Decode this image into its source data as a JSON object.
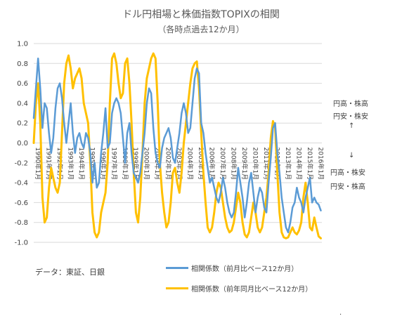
{
  "chart_data": {
    "type": "line",
    "title": "ドル円相場と株価指数TOPIXの相関",
    "subtitle": "（各時点過去12か月）",
    "ylim": [
      -1.0,
      1.0
    ],
    "yticks": [
      "1.0",
      "0.8",
      "0.6",
      "0.4",
      "0.2",
      "0.0",
      "-0.2",
      "-0.4",
      "-0.6",
      "-0.8",
      "-1.0"
    ],
    "x_tick_labels": [
      "1990年1月",
      "1991年1月",
      "1992年1月",
      "1993年1月",
      "1994年1月",
      "1995年1月",
      "1996年1月",
      "1997年1月",
      "1998年1月",
      "1999年1月",
      "2000年1月",
      "2001年1月",
      "2002年1月",
      "2003年1月",
      "2004年1月",
      "2005年1月",
      "2006年1月",
      "2007年1月",
      "2008年1月",
      "2009年1月",
      "2010年1月",
      "2011年1月",
      "2012年1月",
      "2013年1月",
      "2014年1月",
      "2015年1月",
      "2016年1月"
    ],
    "x_start": 1990.0,
    "x_end": 2016.5,
    "series": [
      {
        "name": "相関係数（前月比ベース12か月）",
        "color": "#5B9BD5",
        "points": [
          [
            1990.0,
            0.25
          ],
          [
            1990.2,
            0.55
          ],
          [
            1990.4,
            0.85
          ],
          [
            1990.6,
            0.55
          ],
          [
            1990.8,
            0.15
          ],
          [
            1991.0,
            0.4
          ],
          [
            1991.2,
            0.35
          ],
          [
            1991.4,
            0.1
          ],
          [
            1991.6,
            -0.1
          ],
          [
            1991.8,
            0.05
          ],
          [
            1992.0,
            0.35
          ],
          [
            1992.2,
            0.55
          ],
          [
            1992.4,
            0.6
          ],
          [
            1992.6,
            0.45
          ],
          [
            1992.8,
            0.2
          ],
          [
            1993.0,
            0.0
          ],
          [
            1993.2,
            0.2
          ],
          [
            1993.4,
            0.4
          ],
          [
            1993.6,
            0.1
          ],
          [
            1993.8,
            -0.1
          ],
          [
            1994.0,
            0.05
          ],
          [
            1994.2,
            0.1
          ],
          [
            1994.4,
            0.0
          ],
          [
            1994.6,
            -0.05
          ],
          [
            1994.8,
            0.1
          ],
          [
            1995.0,
            0.05
          ],
          [
            1995.2,
            -0.1
          ],
          [
            1995.4,
            -0.4
          ],
          [
            1995.6,
            -0.2
          ],
          [
            1995.8,
            -0.45
          ],
          [
            1996.0,
            -0.4
          ],
          [
            1996.2,
            -0.1
          ],
          [
            1996.4,
            0.1
          ],
          [
            1996.6,
            0.35
          ],
          [
            1996.8,
            -0.05
          ],
          [
            1997.0,
            0.0
          ],
          [
            1997.2,
            0.3
          ],
          [
            1997.4,
            0.4
          ],
          [
            1997.6,
            0.45
          ],
          [
            1997.8,
            0.4
          ],
          [
            1998.0,
            0.3
          ],
          [
            1998.2,
            0.05
          ],
          [
            1998.4,
            -0.2
          ],
          [
            1998.6,
            0.1
          ],
          [
            1998.8,
            0.2
          ],
          [
            1999.0,
            -0.1
          ],
          [
            1999.2,
            -0.3
          ],
          [
            1999.4,
            -0.35
          ],
          [
            1999.6,
            -0.4
          ],
          [
            1999.8,
            -0.3
          ],
          [
            2000.0,
            -0.1
          ],
          [
            2000.2,
            0.1
          ],
          [
            2000.4,
            0.4
          ],
          [
            2000.6,
            0.55
          ],
          [
            2000.8,
            0.5
          ],
          [
            2001.0,
            0.15
          ],
          [
            2001.2,
            -0.1
          ],
          [
            2001.4,
            -0.2
          ],
          [
            2001.6,
            -0.25
          ],
          [
            2001.8,
            -0.05
          ],
          [
            2002.0,
            0.05
          ],
          [
            2002.2,
            0.1
          ],
          [
            2002.4,
            0.15
          ],
          [
            2002.6,
            0.05
          ],
          [
            2002.8,
            -0.15
          ],
          [
            2003.0,
            -0.2
          ],
          [
            2003.2,
            -0.05
          ],
          [
            2003.4,
            0.1
          ],
          [
            2003.6,
            0.3
          ],
          [
            2003.8,
            0.4
          ],
          [
            2004.0,
            0.3
          ],
          [
            2004.2,
            0.1
          ],
          [
            2004.4,
            0.15
          ],
          [
            2004.6,
            0.4
          ],
          [
            2004.8,
            0.65
          ],
          [
            2005.0,
            0.75
          ],
          [
            2005.2,
            0.7
          ],
          [
            2005.4,
            0.2
          ],
          [
            2005.6,
            0.1
          ],
          [
            2005.8,
            -0.1
          ],
          [
            2006.0,
            -0.25
          ],
          [
            2006.2,
            -0.4
          ],
          [
            2006.4,
            -0.35
          ],
          [
            2006.6,
            -0.45
          ],
          [
            2006.8,
            -0.55
          ],
          [
            2007.0,
            -0.6
          ],
          [
            2007.2,
            -0.5
          ],
          [
            2007.4,
            -0.35
          ],
          [
            2007.6,
            -0.45
          ],
          [
            2007.8,
            -0.6
          ],
          [
            2008.0,
            -0.7
          ],
          [
            2008.2,
            -0.75
          ],
          [
            2008.4,
            -0.7
          ],
          [
            2008.6,
            -0.5
          ],
          [
            2008.8,
            -0.25
          ],
          [
            2009.0,
            -0.4
          ],
          [
            2009.2,
            -0.55
          ],
          [
            2009.4,
            -0.75
          ],
          [
            2009.6,
            -0.6
          ],
          [
            2009.8,
            -0.4
          ],
          [
            2010.0,
            -0.3
          ],
          [
            2010.2,
            -0.5
          ],
          [
            2010.4,
            -0.7
          ],
          [
            2010.6,
            -0.55
          ],
          [
            2010.8,
            -0.45
          ],
          [
            2011.0,
            -0.5
          ],
          [
            2011.2,
            -0.65
          ],
          [
            2011.4,
            -0.7
          ],
          [
            2011.6,
            -0.4
          ],
          [
            2011.8,
            -0.15
          ],
          [
            2012.0,
            0.15
          ],
          [
            2012.2,
            0.2
          ],
          [
            2012.4,
            -0.1
          ],
          [
            2012.6,
            -0.3
          ],
          [
            2012.8,
            -0.55
          ],
          [
            2013.0,
            -0.7
          ],
          [
            2013.2,
            -0.85
          ],
          [
            2013.4,
            -0.9
          ],
          [
            2013.6,
            -0.8
          ],
          [
            2013.8,
            -0.65
          ],
          [
            2014.0,
            -0.6
          ],
          [
            2014.2,
            -0.45
          ],
          [
            2014.4,
            -0.55
          ],
          [
            2014.6,
            -0.6
          ],
          [
            2014.8,
            -0.7
          ],
          [
            2015.0,
            -0.55
          ],
          [
            2015.2,
            -0.45
          ],
          [
            2015.4,
            -0.35
          ],
          [
            2015.6,
            -0.6
          ],
          [
            2015.8,
            -0.55
          ],
          [
            2016.0,
            -0.6
          ],
          [
            2016.2,
            -0.62
          ],
          [
            2016.4,
            -0.68
          ]
        ]
      },
      {
        "name": "相関係数（前年同月比ベース12か月）",
        "color": "#FFC000",
        "points": [
          [
            1990.0,
            0.0
          ],
          [
            1990.2,
            0.4
          ],
          [
            1990.4,
            0.6
          ],
          [
            1990.6,
            0.2
          ],
          [
            1990.8,
            -0.55
          ],
          [
            1991.0,
            -0.8
          ],
          [
            1991.2,
            -0.75
          ],
          [
            1991.4,
            -0.45
          ],
          [
            1991.6,
            -0.25
          ],
          [
            1991.8,
            -0.35
          ],
          [
            1992.0,
            -0.45
          ],
          [
            1992.2,
            -0.5
          ],
          [
            1992.4,
            -0.4
          ],
          [
            1992.6,
            0.1
          ],
          [
            1992.8,
            0.6
          ],
          [
            1993.0,
            0.8
          ],
          [
            1993.2,
            0.88
          ],
          [
            1993.4,
            0.75
          ],
          [
            1993.6,
            0.55
          ],
          [
            1993.8,
            0.65
          ],
          [
            1994.0,
            0.7
          ],
          [
            1994.2,
            0.75
          ],
          [
            1994.4,
            0.65
          ],
          [
            1994.6,
            0.4
          ],
          [
            1994.8,
            0.3
          ],
          [
            1995.0,
            0.2
          ],
          [
            1995.2,
            -0.2
          ],
          [
            1995.4,
            -0.7
          ],
          [
            1995.6,
            -0.9
          ],
          [
            1995.8,
            -0.95
          ],
          [
            1996.0,
            -0.9
          ],
          [
            1996.2,
            -0.7
          ],
          [
            1996.4,
            -0.6
          ],
          [
            1996.6,
            -0.5
          ],
          [
            1996.8,
            -0.2
          ],
          [
            1997.0,
            0.4
          ],
          [
            1997.2,
            0.85
          ],
          [
            1997.4,
            0.9
          ],
          [
            1997.6,
            0.8
          ],
          [
            1997.8,
            0.6
          ],
          [
            1998.0,
            0.45
          ],
          [
            1998.2,
            0.5
          ],
          [
            1998.4,
            0.8
          ],
          [
            1998.6,
            0.85
          ],
          [
            1998.8,
            0.6
          ],
          [
            1999.0,
            0.2
          ],
          [
            1999.2,
            -0.3
          ],
          [
            1999.4,
            -0.7
          ],
          [
            1999.6,
            -0.8
          ],
          [
            1999.8,
            -0.55
          ],
          [
            2000.0,
            -0.1
          ],
          [
            2000.2,
            0.4
          ],
          [
            2000.4,
            0.65
          ],
          [
            2000.6,
            0.75
          ],
          [
            2000.8,
            0.85
          ],
          [
            2001.0,
            0.9
          ],
          [
            2001.2,
            0.85
          ],
          [
            2001.4,
            0.4
          ],
          [
            2001.6,
            -0.2
          ],
          [
            2001.8,
            -0.5
          ],
          [
            2002.0,
            -0.7
          ],
          [
            2002.2,
            -0.85
          ],
          [
            2002.4,
            -0.8
          ],
          [
            2002.6,
            -0.6
          ],
          [
            2002.8,
            -0.3
          ],
          [
            2003.0,
            -0.25
          ],
          [
            2003.2,
            -0.4
          ],
          [
            2003.4,
            -0.5
          ],
          [
            2003.6,
            -0.3
          ],
          [
            2003.8,
            0.0
          ],
          [
            2004.0,
            0.2
          ],
          [
            2004.2,
            0.4
          ],
          [
            2004.4,
            0.6
          ],
          [
            2004.6,
            0.75
          ],
          [
            2004.8,
            0.8
          ],
          [
            2005.0,
            0.82
          ],
          [
            2005.2,
            0.55
          ],
          [
            2005.4,
            0.1
          ],
          [
            2005.6,
            -0.3
          ],
          [
            2005.8,
            -0.6
          ],
          [
            2006.0,
            -0.85
          ],
          [
            2006.2,
            -0.9
          ],
          [
            2006.4,
            -0.85
          ],
          [
            2006.6,
            -0.7
          ],
          [
            2006.8,
            -0.5
          ],
          [
            2007.0,
            -0.4
          ],
          [
            2007.2,
            -0.45
          ],
          [
            2007.4,
            -0.6
          ],
          [
            2007.6,
            -0.75
          ],
          [
            2007.8,
            -0.85
          ],
          [
            2008.0,
            -0.9
          ],
          [
            2008.2,
            -0.88
          ],
          [
            2008.4,
            -0.8
          ],
          [
            2008.6,
            -0.65
          ],
          [
            2008.8,
            -0.5
          ],
          [
            2009.0,
            -0.6
          ],
          [
            2009.2,
            -0.8
          ],
          [
            2009.4,
            -0.92
          ],
          [
            2009.6,
            -0.95
          ],
          [
            2009.8,
            -0.9
          ],
          [
            2010.0,
            -0.75
          ],
          [
            2010.2,
            -0.6
          ],
          [
            2010.4,
            -0.7
          ],
          [
            2010.6,
            -0.85
          ],
          [
            2010.8,
            -0.9
          ],
          [
            2011.0,
            -0.85
          ],
          [
            2011.2,
            -0.7
          ],
          [
            2011.4,
            -0.55
          ],
          [
            2011.6,
            -0.3
          ],
          [
            2011.8,
            0.05
          ],
          [
            2012.0,
            0.22
          ],
          [
            2012.2,
            0.15
          ],
          [
            2012.4,
            -0.3
          ],
          [
            2012.6,
            -0.7
          ],
          [
            2012.8,
            -0.9
          ],
          [
            2013.0,
            -0.95
          ],
          [
            2013.2,
            -0.96
          ],
          [
            2013.4,
            -0.95
          ],
          [
            2013.6,
            -0.9
          ],
          [
            2013.8,
            -0.85
          ],
          [
            2014.0,
            -0.9
          ],
          [
            2014.2,
            -0.92
          ],
          [
            2014.4,
            -0.88
          ],
          [
            2014.6,
            -0.8
          ],
          [
            2014.8,
            -0.55
          ],
          [
            2015.0,
            -0.4
          ],
          [
            2015.2,
            -0.6
          ],
          [
            2015.4,
            -0.85
          ],
          [
            2015.6,
            -0.88
          ],
          [
            2015.8,
            -0.75
          ],
          [
            2016.0,
            -0.85
          ],
          [
            2016.2,
            -0.94
          ],
          [
            2016.4,
            -0.96
          ]
        ]
      }
    ]
  },
  "annotations": {
    "upper_line1": "円高・株高",
    "upper_line2": "円安・株安",
    "up_arrow": "↑",
    "down_arrow": "↓",
    "lower_line1": "円高・株安",
    "lower_line2": "円安・株高"
  },
  "source": "データ：東証、日銀",
  "trailing_mark": "."
}
